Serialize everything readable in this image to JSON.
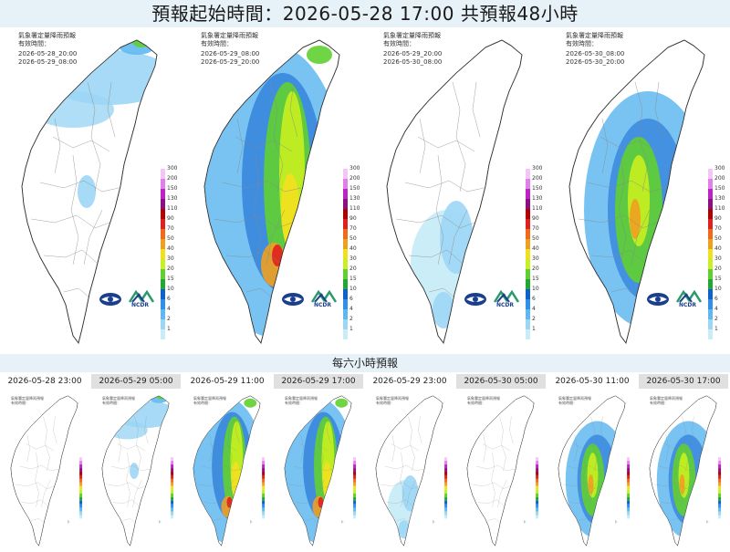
{
  "title": "預報起始時間：2026-05-28 17:00  共預報48小時",
  "panels": [
    {
      "heading": "氣象署定量降雨預報",
      "sub": "有效時間：",
      "from": "2026-05-28_20:00",
      "to": "2026-05-29_08:00",
      "intensity": "light-north"
    },
    {
      "heading": "氣象署定量降雨預報",
      "sub": "有效時間：",
      "from": "2026-05-29_08:00",
      "to": "2026-05-29_20:00",
      "intensity": "heavy-west"
    },
    {
      "heading": "氣象署定量降雨預報",
      "sub": "有效時間：",
      "from": "2026-05-29_20:00",
      "to": "2026-05-30_08:00",
      "intensity": "light-south"
    },
    {
      "heading": "氣象署定量降雨預報",
      "sub": "有效時間：",
      "from": "2026-05-30_08:00",
      "to": "2026-05-30_20:00",
      "intensity": "heavy-central"
    }
  ],
  "legend": {
    "levels": [
      "300",
      "200",
      "150",
      "130",
      "110",
      "90",
      "70",
      "50",
      "40",
      "30",
      "20",
      "15",
      "10",
      "6",
      "4",
      "2",
      "1"
    ],
    "colors": [
      "#f5c6f5",
      "#e080e8",
      "#c020c8",
      "#8e1080",
      "#b00000",
      "#e02020",
      "#f06a1a",
      "#f0a020",
      "#f0e020",
      "#c8f020",
      "#60d030",
      "#20a830",
      "#1060d0",
      "#3090e8",
      "#60b8f0",
      "#9cd6f5",
      "#c8ecf8"
    ]
  },
  "logos": {
    "ncdr": "NCDR"
  },
  "six_hour_header": "每六小時預報",
  "six_hour": [
    {
      "time": "2026-05-28 23:00",
      "shade": false,
      "intensity": "none"
    },
    {
      "time": "2026-05-29 05:00",
      "shade": true,
      "intensity": "north"
    },
    {
      "time": "2026-05-29 11:00",
      "shade": false,
      "intensity": "heavy"
    },
    {
      "time": "2026-05-29 17:00",
      "shade": true,
      "intensity": "heavy"
    },
    {
      "time": "2026-05-29 23:00",
      "shade": false,
      "intensity": "light"
    },
    {
      "time": "2026-05-30 05:00",
      "shade": true,
      "intensity": "none"
    },
    {
      "time": "2026-05-30 11:00",
      "shade": false,
      "intensity": "medium"
    },
    {
      "time": "2026-05-30 17:00",
      "shade": true,
      "intensity": "medium"
    }
  ],
  "six_small": {
    "heading": "氣象署定量降雨預報",
    "sub": "有效時間："
  }
}
